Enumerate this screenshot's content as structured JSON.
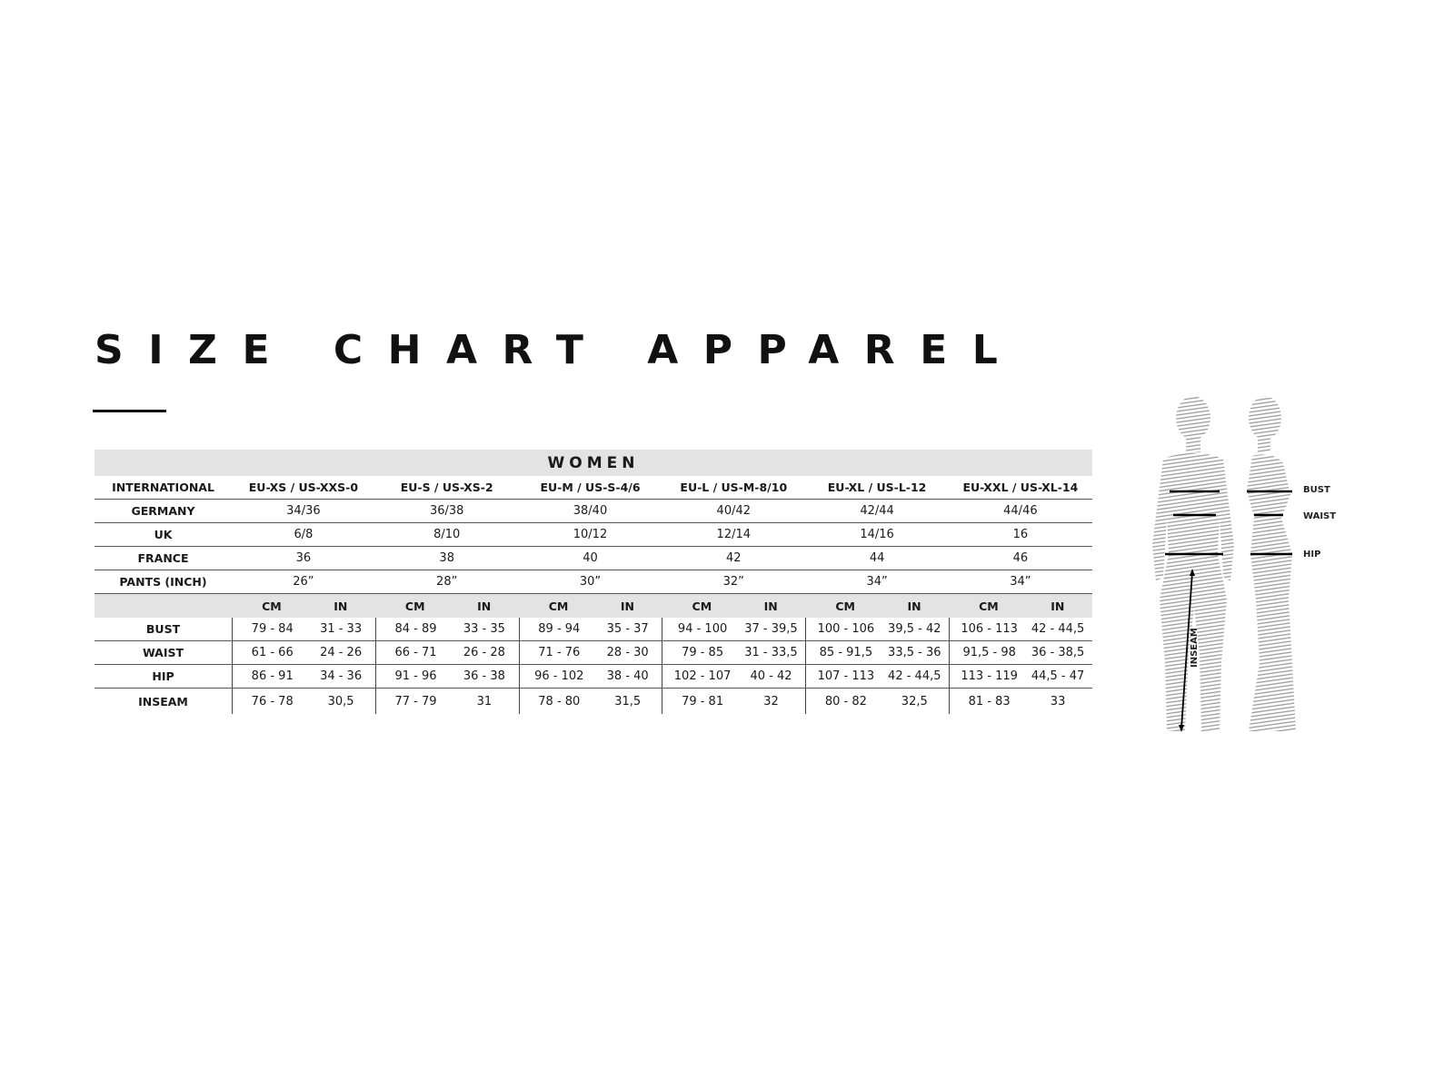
{
  "title": "SIZE CHART APPAREL",
  "section": "WOMEN",
  "size_rows": [
    {
      "label": "INTERNATIONAL",
      "values": [
        "EU-XS / US-XXS-0",
        "EU-S / US-XS-2",
        "EU-M / US-S-4/6",
        "EU-L / US-M-8/10",
        "EU-XL / US-L-12",
        "EU-XXL / US-XL-14"
      ]
    },
    {
      "label": "GERMANY",
      "values": [
        "34/36",
        "36/38",
        "38/40",
        "40/42",
        "42/44",
        "44/46"
      ]
    },
    {
      "label": "UK",
      "values": [
        "6/8",
        "8/10",
        "10/12",
        "12/14",
        "14/16",
        "16"
      ]
    },
    {
      "label": "FRANCE",
      "values": [
        "36",
        "38",
        "40",
        "42",
        "44",
        "46"
      ]
    },
    {
      "label": "PANTS (INCH)",
      "values": [
        "26”",
        "28”",
        "30”",
        "32”",
        "34”",
        "34”"
      ]
    }
  ],
  "units": [
    "CM",
    "IN"
  ],
  "measure_rows": [
    {
      "label": "BUST",
      "values": [
        [
          "79 - 84",
          "31 - 33"
        ],
        [
          "84 - 89",
          "33 - 35"
        ],
        [
          "89 - 94",
          "35 - 37"
        ],
        [
          "94 - 100",
          "37 - 39,5"
        ],
        [
          "100 - 106",
          "39,5 - 42"
        ],
        [
          "106 - 113",
          "42 - 44,5"
        ]
      ]
    },
    {
      "label": "WAIST",
      "values": [
        [
          "61 - 66",
          "24 - 26"
        ],
        [
          "66 - 71",
          "26 - 28"
        ],
        [
          "71 - 76",
          "28 - 30"
        ],
        [
          "79 - 85",
          "31 - 33,5"
        ],
        [
          "85 - 91,5",
          "33,5 - 36"
        ],
        [
          "91,5 - 98",
          "36 - 38,5"
        ]
      ]
    },
    {
      "label": "HIP",
      "values": [
        [
          "86 - 91",
          "34 - 36"
        ],
        [
          "91 - 96",
          "36 - 38"
        ],
        [
          "96 - 102",
          "38 - 40"
        ],
        [
          "102 - 107",
          "40 - 42"
        ],
        [
          "107 - 113",
          "42 - 44,5"
        ],
        [
          "113 - 119",
          "44,5 - 47"
        ]
      ]
    },
    {
      "label": "INSEAM",
      "values": [
        [
          "76 - 78",
          "30,5"
        ],
        [
          "77 - 79",
          "31"
        ],
        [
          "78 - 80",
          "31,5"
        ],
        [
          "79 - 81",
          "32"
        ],
        [
          "80 - 82",
          "32,5"
        ],
        [
          "81 - 83",
          "33"
        ]
      ]
    }
  ],
  "figure_labels": {
    "bust": "BUST",
    "waist": "WAIST",
    "hip": "HIP",
    "inseam": "INSEAM"
  }
}
